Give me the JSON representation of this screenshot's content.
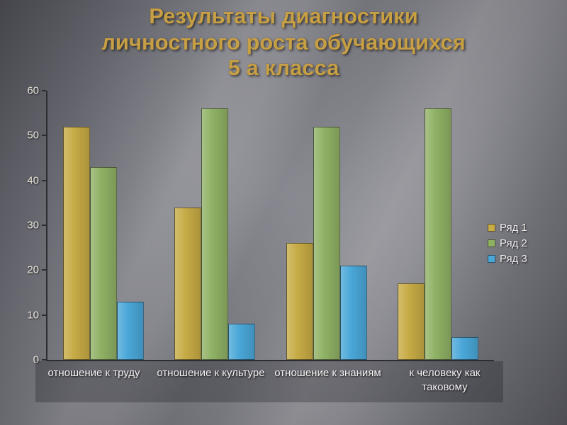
{
  "slide": {
    "title_lines": {
      "line1": "Результаты диагностики",
      "line2": "личностного роста обучающихся",
      "line3": "5 а класса"
    }
  },
  "chart_data": {
    "type": "bar",
    "title": "Результаты диагностики личностного роста обучающихся 5 а класса",
    "categories": [
      "отношение к труду",
      "отношение к культуре",
      "отношение к знаниям",
      "к человеку как таковому"
    ],
    "series": [
      {
        "name": "Ряд 1",
        "color": "#c7ab45",
        "values": [
          52,
          34,
          26,
          17
        ]
      },
      {
        "name": "Ряд 2",
        "color": "#8fb164",
        "values": [
          43,
          56,
          52,
          56
        ]
      },
      {
        "name": "Ряд 3",
        "color": "#4aa7d8",
        "values": [
          13,
          8,
          21,
          5
        ]
      }
    ],
    "xlabel": "",
    "ylabel": "",
    "ylim": [
      0,
      60
    ],
    "ytick_step": 10,
    "grid": false,
    "legend_position": "right",
    "colors": {
      "title_text": "#c79f45",
      "axis_line": "#2c2c31",
      "tick_text": "#e8e6da",
      "category_text": "#f4f4f4",
      "legend_text": "#efefef",
      "background_base": "#7b7b84"
    }
  }
}
